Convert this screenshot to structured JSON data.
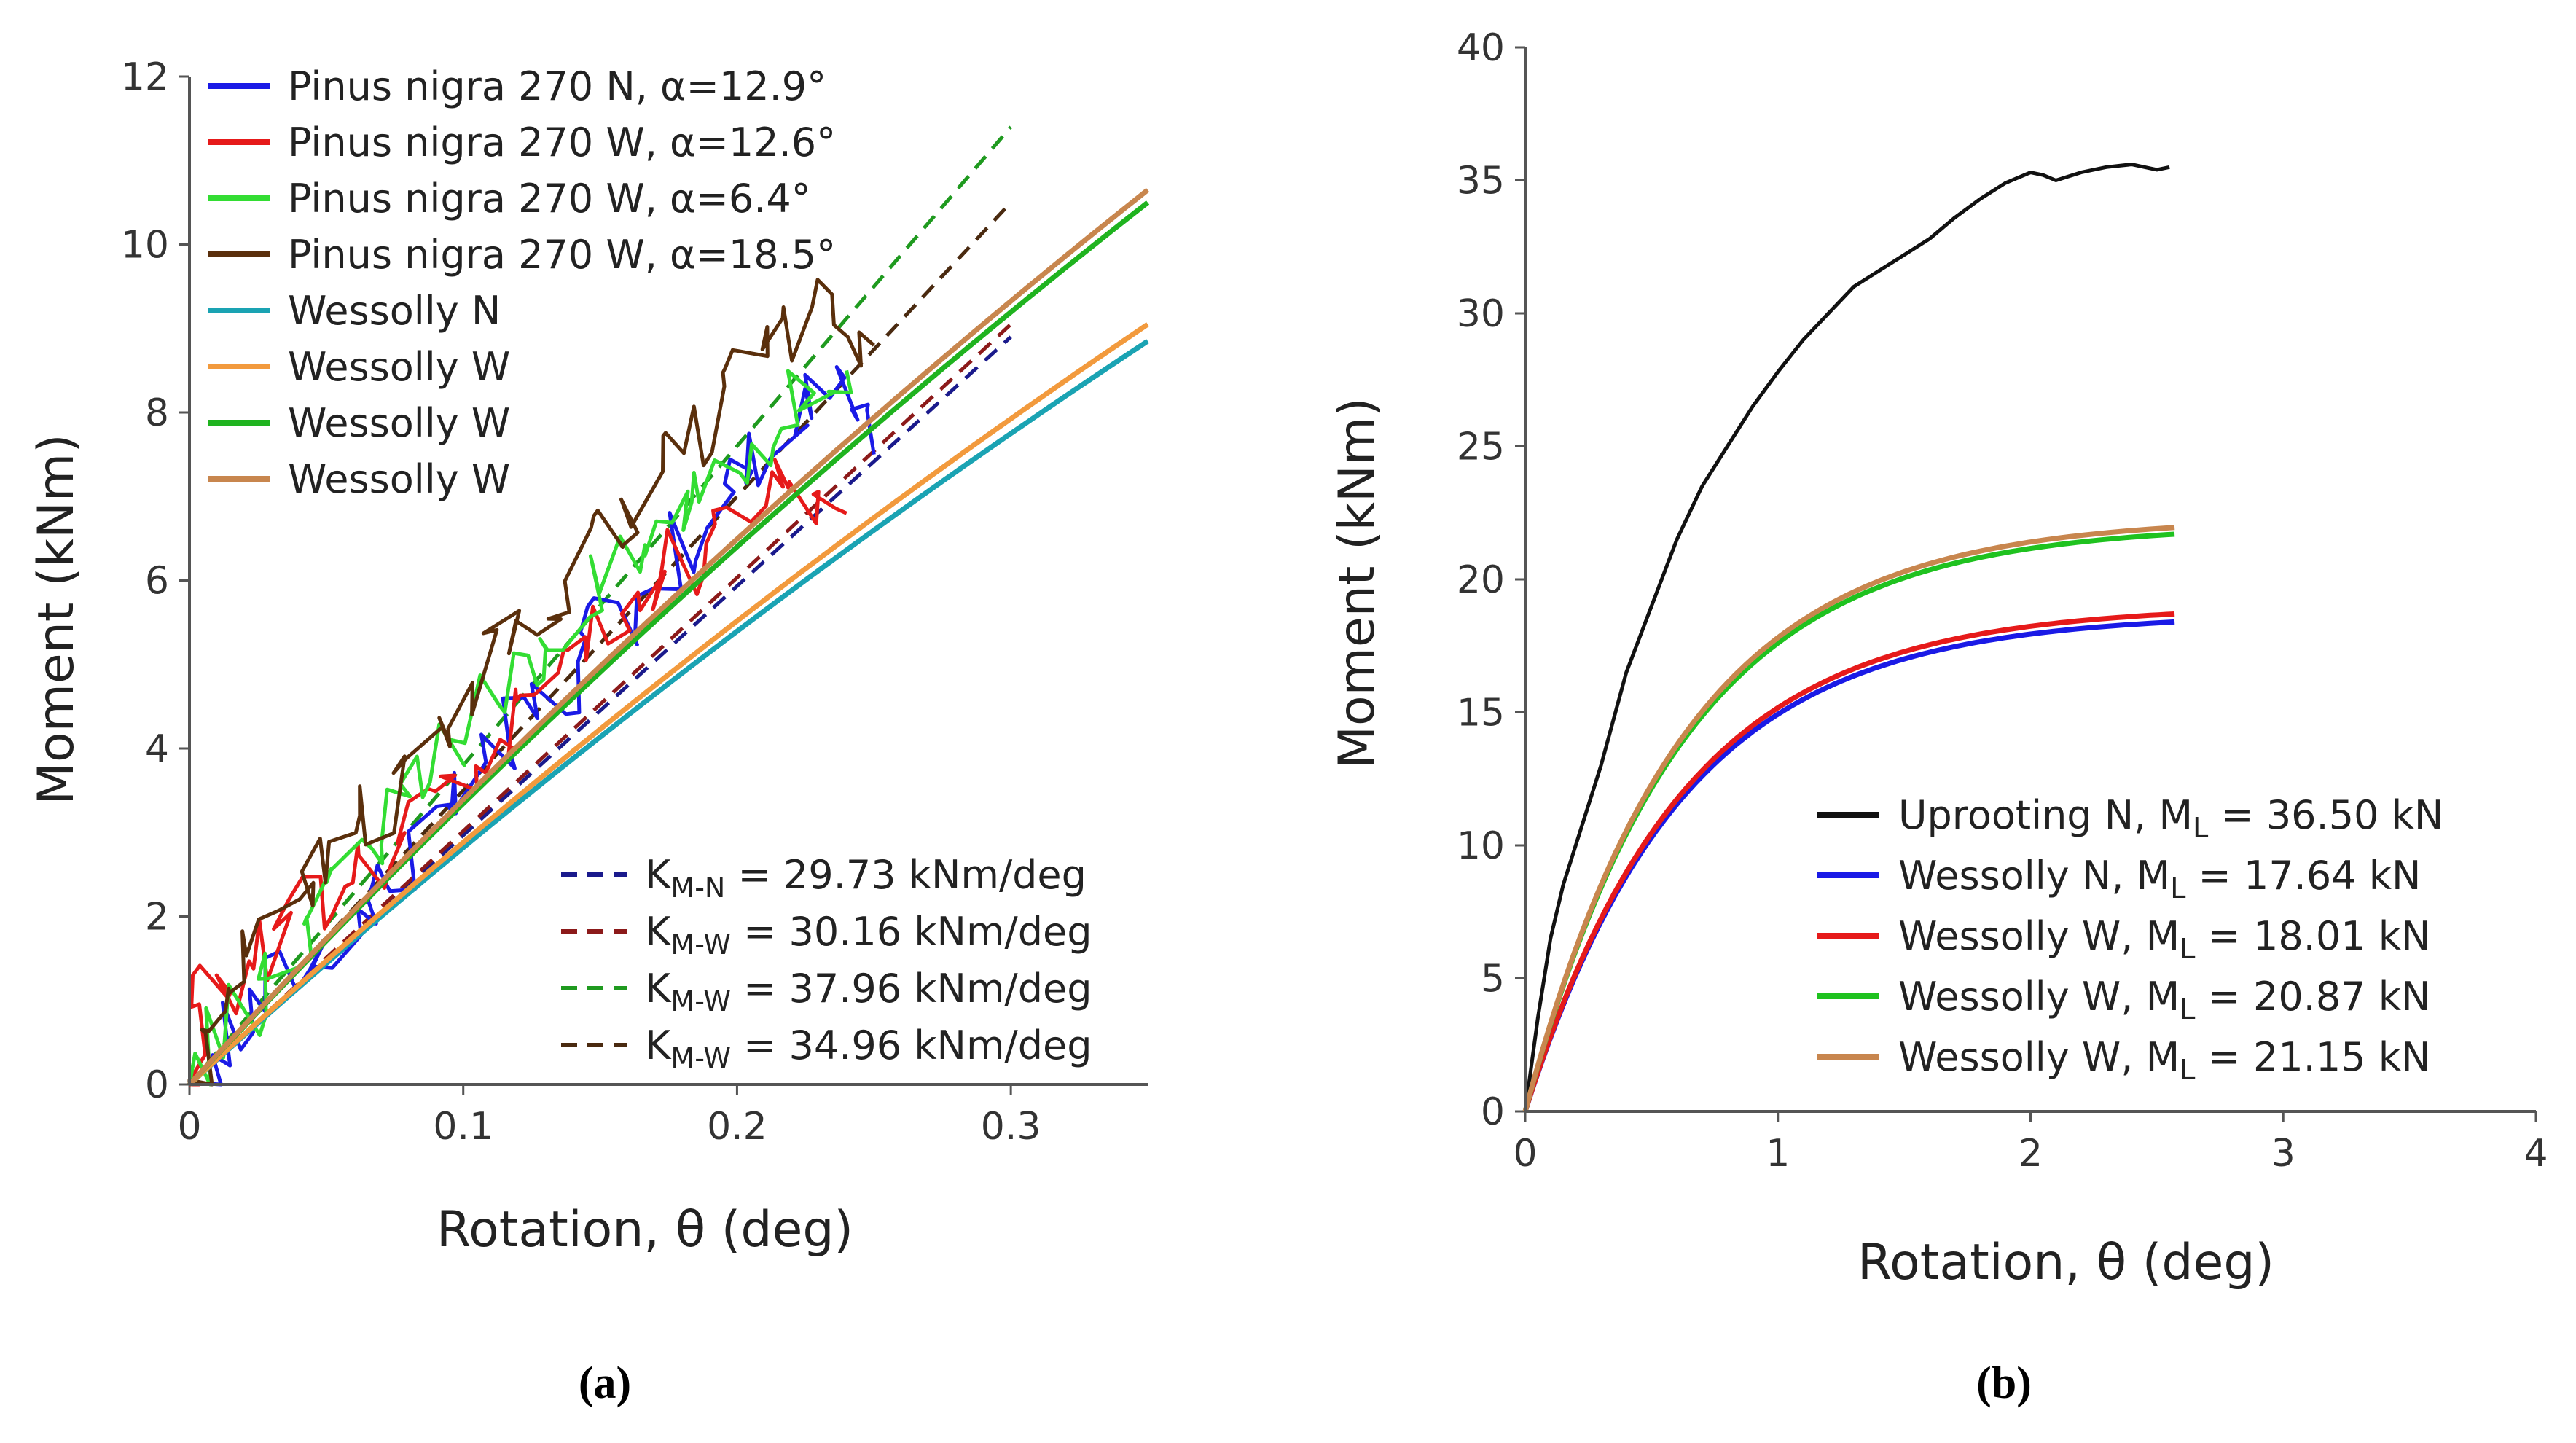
{
  "chart_data": [
    {
      "type": "line",
      "panel": "a",
      "caption": "(a)",
      "xlabel": "Rotation, θ (deg)",
      "ylabel": "Moment (kNm)",
      "xlim": [
        0,
        0.35
      ],
      "ylim": [
        0,
        12
      ],
      "xticks": [
        0,
        0.1,
        0.2,
        0.3
      ],
      "xtick_labels": [
        "0",
        "0.1",
        "0.2",
        "0.3"
      ],
      "yticks": [
        0,
        2,
        4,
        6,
        8,
        10,
        12
      ],
      "ytick_labels": [
        "0",
        "2",
        "4",
        "6",
        "8",
        "10",
        "12"
      ],
      "legend_placement": "top-left",
      "legend2_placement": "bottom-right",
      "series": [
        {
          "name": "Pinus nigra 270 N, α=12.9°",
          "color": "#1a1ae6",
          "style": "noisy",
          "x": [
            0,
            0.02,
            0.04,
            0.06,
            0.08,
            0.1,
            0.12,
            0.14,
            0.16,
            0.18,
            0.2,
            0.22,
            0.235,
            0.25
          ],
          "y": [
            0,
            0.7,
            1.4,
            2.0,
            2.7,
            3.4,
            4.2,
            4.9,
            5.6,
            6.4,
            7.1,
            7.8,
            8.3,
            7.5
          ]
        },
        {
          "name": "Pinus nigra 270 W, α=12.6°",
          "color": "#e61a1a",
          "style": "noisy",
          "x": [
            0,
            0.005,
            0.02,
            0.04,
            0.06,
            0.08,
            0.1,
            0.12,
            0.14,
            0.16,
            0.18,
            0.2,
            0.22,
            0.24
          ],
          "y": [
            0,
            1.2,
            1.3,
            2.0,
            2.5,
            3.0,
            3.7,
            4.4,
            5.0,
            5.6,
            6.2,
            6.7,
            7.2,
            6.8
          ]
        },
        {
          "name": "Pinus nigra 270 W, α=6.4°",
          "color": "#33dd33",
          "style": "noisy",
          "x": [
            0,
            0.02,
            0.04,
            0.06,
            0.08,
            0.1,
            0.12,
            0.14,
            0.16,
            0.18,
            0.2,
            0.22,
            0.24
          ],
          "y": [
            0,
            1.0,
            1.8,
            2.6,
            3.4,
            4.2,
            5.0,
            5.6,
            6.3,
            7.0,
            7.6,
            8.2,
            8.5
          ]
        },
        {
          "name": "Pinus nigra 270 W, α=18.5°",
          "color": "#5a2f0c",
          "style": "noisy",
          "x": [
            0,
            0.01,
            0.03,
            0.05,
            0.07,
            0.09,
            0.11,
            0.13,
            0.15,
            0.17,
            0.19,
            0.21,
            0.23,
            0.25
          ],
          "y": [
            0,
            0.9,
            1.8,
            2.5,
            3.3,
            4.1,
            5.0,
            5.8,
            6.5,
            7.2,
            7.9,
            8.6,
            9.2,
            8.8
          ]
        },
        {
          "name": "Wessolly N",
          "color": "#1aa3b3",
          "style": "fit",
          "x_max": 0.35,
          "y_at_max": 8.85
        },
        {
          "name": "Wessolly W",
          "color": "#f29a3d",
          "style": "fit",
          "x_max": 0.35,
          "y_at_max": 9.05
        },
        {
          "name": "Wessolly W",
          "color": "#1fb31f",
          "style": "fit",
          "x_max": 0.35,
          "y_at_max": 10.5
        },
        {
          "name": "Wessolly W",
          "color": "#c8864e",
          "style": "fit",
          "x_max": 0.35,
          "y_at_max": 10.65
        }
      ],
      "stiffness_lines": [
        {
          "label": "K",
          "subscript": "M-N",
          "rest": " = 29.73 kNm/deg",
          "color": "#1a1a8c",
          "x": [
            0,
            0.3
          ],
          "y": [
            0,
            8.9
          ]
        },
        {
          "label": "K",
          "subscript": "M-W",
          "rest": " = 30.16 kNm/deg",
          "color": "#8c1a1a",
          "x": [
            0,
            0.3
          ],
          "y": [
            0,
            9.05
          ]
        },
        {
          "label": "K",
          "subscript": "M-W",
          "rest": " = 37.96 kNm/deg",
          "color": "#1f9a1f",
          "x": [
            0,
            0.3
          ],
          "y": [
            0,
            11.4
          ]
        },
        {
          "label": "K",
          "subscript": "M-W",
          "rest": " = 34.96 kNm/deg",
          "color": "#4a2a10",
          "x": [
            0,
            0.3
          ],
          "y": [
            0,
            10.5
          ]
        }
      ]
    },
    {
      "type": "line",
      "panel": "b",
      "caption": "(b)",
      "xlabel": "Rotation, θ (deg)",
      "ylabel": "Moment (kNm)",
      "xlim": [
        0,
        4
      ],
      "ylim": [
        0,
        40
      ],
      "xticks": [
        0,
        1,
        2,
        3,
        4
      ],
      "xtick_labels": [
        "0",
        "1",
        "2",
        "3",
        "4"
      ],
      "yticks": [
        0,
        5,
        10,
        15,
        20,
        25,
        30,
        35,
        40
      ],
      "ytick_labels": [
        "0",
        "5",
        "10",
        "15",
        "20",
        "25",
        "30",
        "35",
        "40"
      ],
      "legend_placement": "bottom-right",
      "series": [
        {
          "name": "Uprooting N",
          "ml": "M",
          "ml_sub": "L",
          "ml_value": " = 36.50 kN",
          "color": "#111111",
          "style": "measured",
          "x": [
            0,
            0.05,
            0.1,
            0.15,
            0.2,
            0.3,
            0.4,
            0.5,
            0.6,
            0.7,
            0.8,
            0.9,
            1.0,
            1.1,
            1.2,
            1.3,
            1.4,
            1.5,
            1.6,
            1.7,
            1.8,
            1.9,
            2.0,
            2.05,
            2.1,
            2.2,
            2.3,
            2.4,
            2.5,
            2.55
          ],
          "y": [
            0,
            3.5,
            6.5,
            8.5,
            10.0,
            13.0,
            16.5,
            19.0,
            21.5,
            23.5,
            25.0,
            26.5,
            27.8,
            29.0,
            30.0,
            31.0,
            31.6,
            32.2,
            32.8,
            33.6,
            34.3,
            34.9,
            35.3,
            35.2,
            35.0,
            35.3,
            35.5,
            35.6,
            35.4,
            35.5
          ]
        },
        {
          "name": "Wessolly N",
          "ml": "M",
          "ml_sub": "L",
          "ml_value": " = 17.64 kN",
          "color": "#1a1ae6",
          "style": "fit",
          "x_max": 2.57,
          "y_at_max": 18.4
        },
        {
          "name": "Wessolly W",
          "ml": "M",
          "ml_sub": "L",
          "ml_value": " = 18.01 kN",
          "color": "#e61a1a",
          "style": "fit",
          "x_max": 2.57,
          "y_at_max": 18.7
        },
        {
          "name": "Wessolly W",
          "ml": "M",
          "ml_sub": "L",
          "ml_value": " = 20.87 kN",
          "color": "#1fc21f",
          "style": "fit",
          "x_max": 2.57,
          "y_at_max": 21.7
        },
        {
          "name": "Wessolly W",
          "ml": "M",
          "ml_sub": "L",
          "ml_value": " = 21.15 kN",
          "color": "#c8864e",
          "style": "fit",
          "x_max": 2.57,
          "y_at_max": 21.95
        }
      ]
    }
  ]
}
